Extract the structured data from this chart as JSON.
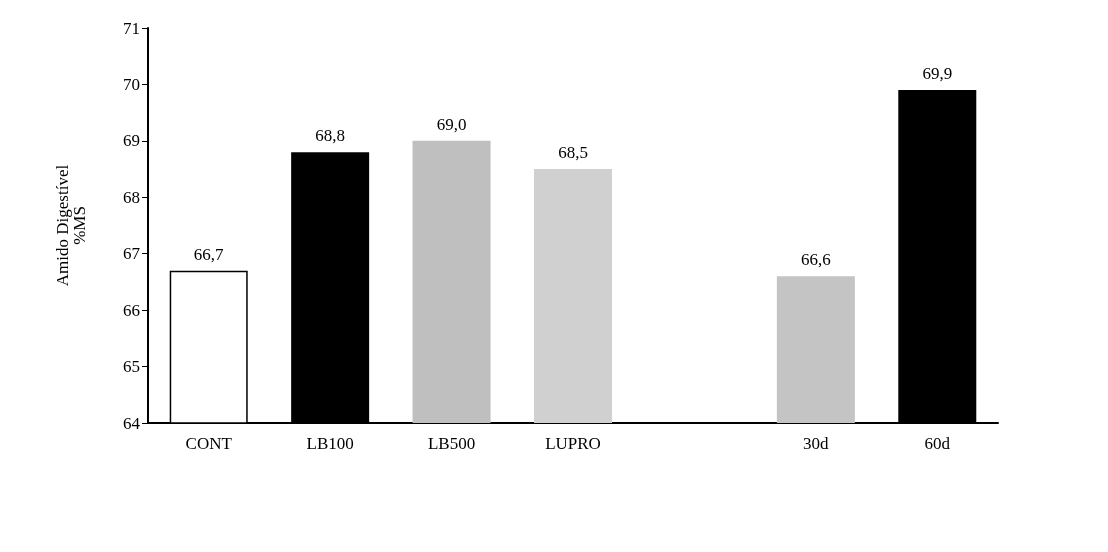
{
  "chart_data": {
    "type": "bar",
    "ylabel": "Amido Digestível\n%MS",
    "categories": [
      "CONT",
      "LB100",
      "LB500",
      "LUPRO",
      null,
      "30d",
      "60d"
    ],
    "values": [
      66.7,
      68.8,
      69.0,
      68.5,
      null,
      66.6,
      69.9
    ],
    "colors": [
      "#ffffff",
      "#000000",
      "#bfbfbf",
      "#d0d0d0",
      "#ffffff",
      "#c4c4c4",
      "#000000"
    ],
    "value_labels": [
      "66,7",
      "68,8",
      "69,0",
      "68,5",
      null,
      "66,6",
      "69,9"
    ],
    "ylim": [
      64,
      71
    ],
    "yticks": [
      64,
      65,
      66,
      67,
      68,
      69,
      70,
      71
    ],
    "grid": false
  }
}
